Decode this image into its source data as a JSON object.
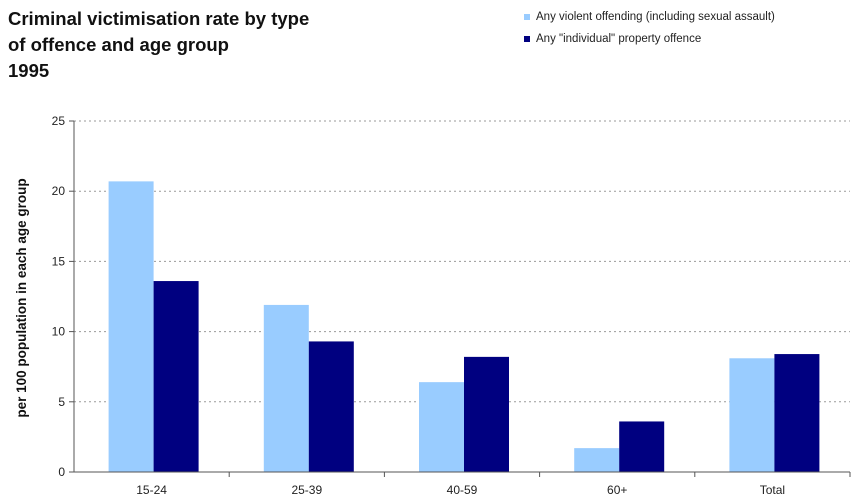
{
  "chart_data": {
    "type": "bar",
    "title": [
      "Criminal victimisation rate by type",
      "of offence and age group",
      "1995"
    ],
    "xlabel": "",
    "ylabel": "per 100 population in each age group",
    "ylim": [
      0,
      25
    ],
    "yticks": [
      0,
      5,
      10,
      15,
      20,
      25
    ],
    "categories": [
      "15-24",
      "25-39",
      "40-59",
      "60+",
      "Total"
    ],
    "series": [
      {
        "name": "Any violent offending (including sexual assault)",
        "color": "#99ccff",
        "values": [
          20.7,
          11.9,
          6.4,
          1.7,
          8.1
        ]
      },
      {
        "name": "Any \"individual\" property offence",
        "color": "#000080",
        "values": [
          13.6,
          9.3,
          8.2,
          3.6,
          8.4
        ]
      }
    ],
    "grid": true,
    "legend_position": "top-right"
  }
}
